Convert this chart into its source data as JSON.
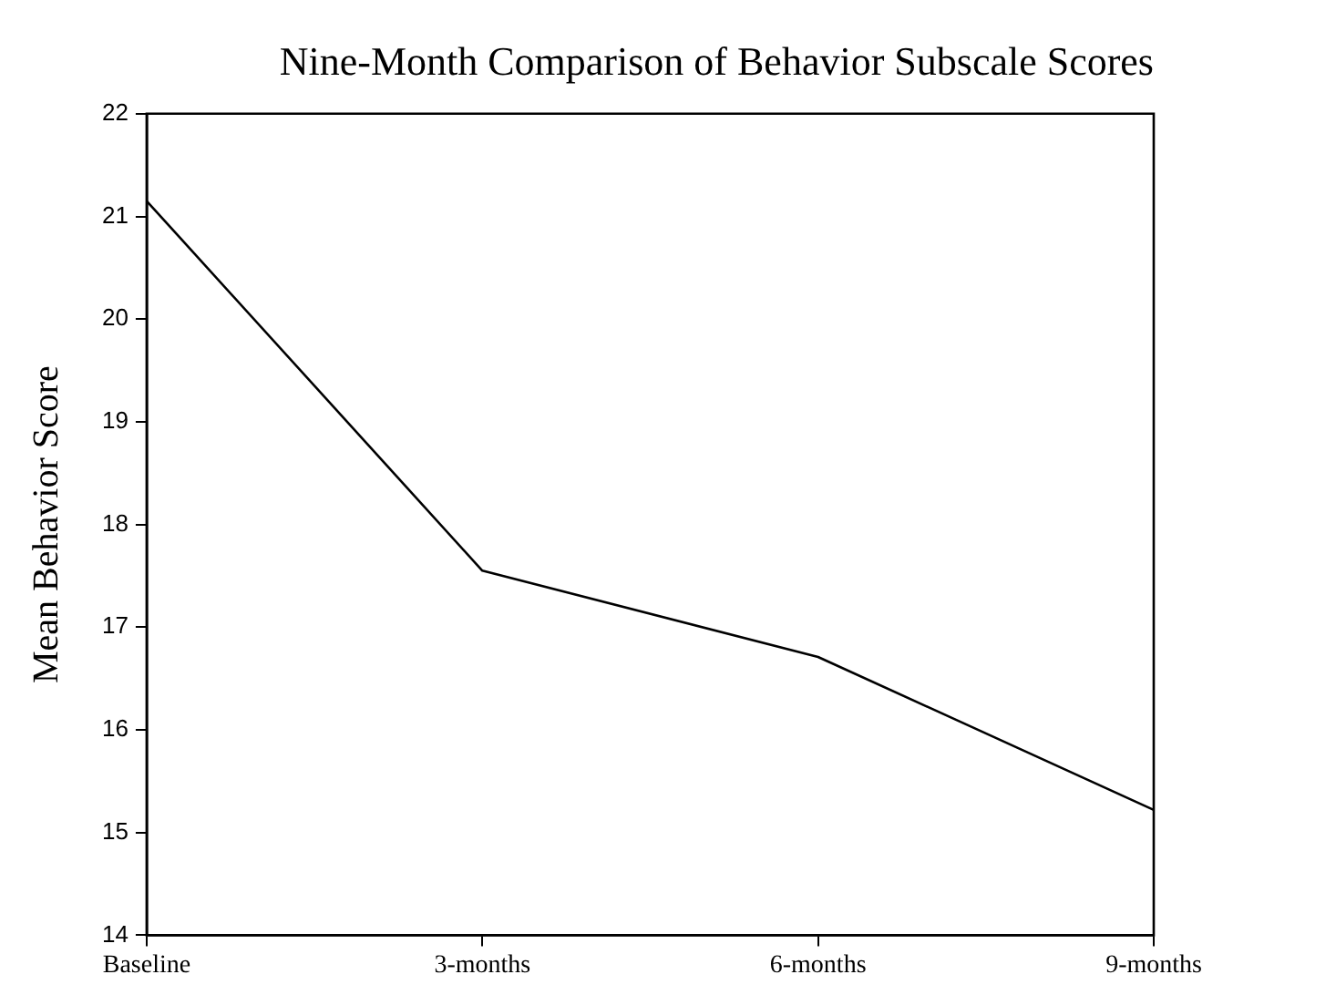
{
  "chart_data": {
    "type": "line",
    "title": "Nine-Month Comparison of Behavior Subscale Scores",
    "ylabel": "Mean Behavior Score",
    "categories": [
      "Baseline",
      "3-months",
      "6-months",
      "9-months"
    ],
    "series": [
      {
        "color": "#000000",
        "values": [
          21.15,
          17.55,
          16.71,
          15.22
        ]
      }
    ],
    "ylim": [
      14,
      22
    ],
    "yticks": [
      14,
      15,
      16,
      17,
      18,
      19,
      20,
      21,
      22
    ],
    "grid": false,
    "legend": false,
    "marker": "none",
    "line_style": "solid"
  }
}
